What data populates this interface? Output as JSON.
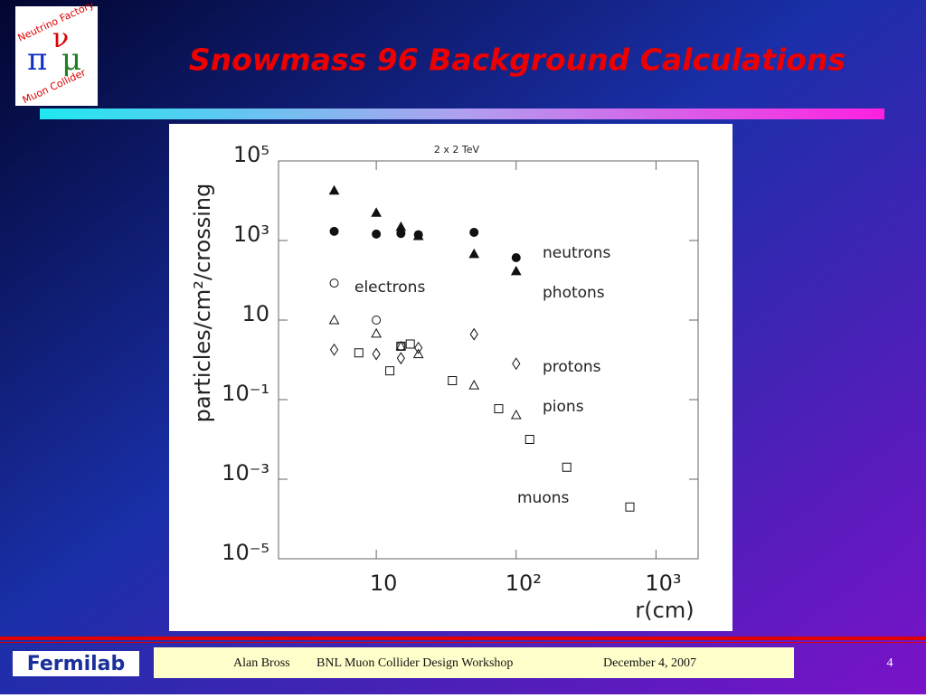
{
  "title": "Snowmass 96 Background Calculations",
  "logo": {
    "top": "Neutrino Factory",
    "bottom": "Muon Collider",
    "symbols": [
      "ν",
      "π",
      "μ"
    ]
  },
  "footer": {
    "brand": "Fermilab",
    "author": "Alan Bross",
    "event": "BNL  Muon Collider Design Workshop",
    "date": "December 4, 2007",
    "page": "4"
  },
  "chart_data": {
    "type": "scatter",
    "title": "2 x 2 TeV",
    "x_label": "r(cm)",
    "y_label": "particles/cm²/crossing",
    "xscale": "log",
    "yscale": "log",
    "xlim": [
      2,
      2000
    ],
    "ylim": [
      1e-05,
      100000
    ],
    "xticks": [
      10,
      {
        "value": 100,
        "label": "10²"
      },
      {
        "value": 1000,
        "label": "10³"
      }
    ],
    "yticks": [
      {
        "value": 100000,
        "label": "10⁵"
      },
      {
        "value": 1000,
        "label": "10³"
      },
      10,
      {
        "value": 0.1,
        "label": "10⁻¹"
      },
      {
        "value": 0.001,
        "label": "10⁻³"
      },
      {
        "value": 1e-05,
        "label": "10⁻⁵"
      }
    ],
    "series": [
      {
        "name": "neutrons",
        "marker": "circle",
        "filled": true,
        "color": "#111111",
        "x": [
          5,
          10,
          15,
          20,
          50,
          100
        ],
        "values": [
          1700,
          1450,
          1500,
          1400,
          1600,
          370
        ]
      },
      {
        "name": "photons",
        "marker": "triangle",
        "filled": true,
        "color": "#111111",
        "x": [
          5,
          10,
          15,
          20,
          50,
          100
        ],
        "values": [
          18000,
          5000,
          2200,
          1300,
          460,
          170
        ]
      },
      {
        "name": "electrons",
        "marker": "circle",
        "filled": false,
        "color": "#111111",
        "x": [
          5,
          10,
          15
        ],
        "values": [
          85,
          10,
          2.2
        ]
      },
      {
        "name": "protons",
        "marker": "diamond",
        "filled": false,
        "color": "#111111",
        "x": [
          5,
          10,
          15,
          20,
          50,
          100
        ],
        "values": [
          1.8,
          1.4,
          1.1,
          2.0,
          4.4,
          0.8
        ]
      },
      {
        "name": "pions",
        "marker": "triangle",
        "filled": false,
        "color": "#111111",
        "x": [
          5,
          10,
          15,
          20,
          50,
          100
        ],
        "values": [
          10,
          4.6,
          2.2,
          1.4,
          0.23,
          0.041
        ]
      },
      {
        "name": "muons",
        "marker": "square",
        "filled": false,
        "color": "#111111",
        "x": [
          7.5,
          12.5,
          15,
          17.5,
          35,
          75,
          125,
          230,
          650
        ],
        "values": [
          1.5,
          0.53,
          2.2,
          2.5,
          0.3,
          0.059,
          0.01,
          0.002,
          0.0002
        ]
      }
    ]
  }
}
